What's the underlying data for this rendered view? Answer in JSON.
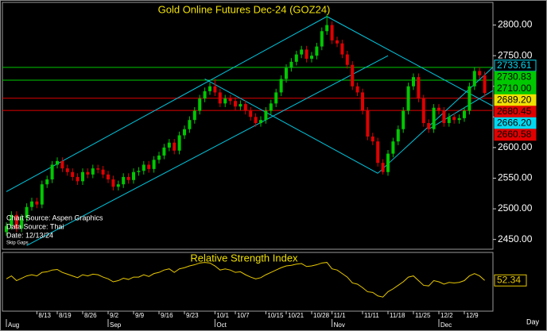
{
  "chart_data": {
    "type": "candlestick",
    "title": "Gold  Online  Futures  Dec-24  (GOZ24)",
    "categories": [
      null,
      null,
      null,
      null,
      null,
      null,
      "8/13",
      null,
      null,
      null,
      "8/19",
      null,
      null,
      null,
      null,
      "8/26",
      null,
      null,
      null,
      null,
      "9/2",
      null,
      null,
      null,
      null,
      "9/9",
      null,
      null,
      null,
      null,
      "9/16",
      null,
      null,
      null,
      null,
      "9/23",
      null,
      null,
      null,
      null,
      null,
      "10/1",
      null,
      null,
      null,
      "10/7",
      null,
      null,
      null,
      null,
      null,
      "10/15",
      null,
      null,
      null,
      "10/21",
      null,
      null,
      null,
      null,
      "10/28",
      null,
      null,
      null,
      "11/1",
      null,
      null,
      null,
      null,
      null,
      "11/11",
      null,
      null,
      null,
      null,
      "11/18",
      null,
      null,
      null,
      null,
      "11/25",
      null,
      null,
      null,
      null,
      "12/2",
      null,
      null,
      null,
      null,
      "12/9",
      null,
      null,
      null,
      null
    ],
    "months": [
      "Aug",
      null,
      null,
      null,
      null,
      null,
      null,
      null,
      null,
      null,
      null,
      null,
      null,
      null,
      null,
      null,
      null,
      null,
      null,
      null,
      "Sep",
      null,
      null,
      null,
      null,
      null,
      null,
      null,
      null,
      null,
      null,
      null,
      null,
      null,
      null,
      null,
      null,
      null,
      null,
      null,
      null,
      "Oct",
      null,
      null,
      null,
      null,
      null,
      null,
      null,
      null,
      null,
      null,
      null,
      null,
      null,
      null,
      null,
      null,
      null,
      null,
      null,
      null,
      null,
      null,
      "Nov",
      null,
      null,
      null,
      null,
      null,
      null,
      null,
      null,
      null,
      null,
      null,
      null,
      null,
      null,
      null,
      null,
      null,
      null,
      null,
      null,
      "Dec",
      null,
      null,
      null,
      null,
      null,
      null,
      null,
      null,
      null
    ],
    "x_axis_label": "Day",
    "open": [
      2462,
      2472,
      2490,
      2468,
      2485,
      2503,
      2512,
      2507,
      2540,
      2548,
      2572,
      2578,
      2566,
      2560,
      2552,
      2545,
      2560,
      2556,
      2566,
      2564,
      2556,
      2548,
      2536,
      2540,
      2552,
      2547,
      2560,
      2562,
      2572,
      2565,
      2580,
      2587,
      2600,
      2608,
      2595,
      2620,
      2630,
      2645,
      2660,
      2680,
      2692,
      2700,
      2690,
      2672,
      2680,
      2676,
      2667,
      2671,
      2660,
      2650,
      2640,
      2645,
      2660,
      2672,
      2690,
      2712,
      2730,
      2740,
      2752,
      2760,
      2745,
      2750,
      2765,
      2790,
      2800,
      2775,
      2770,
      2752,
      2735,
      2700,
      2690,
      2660,
      2618,
      2610,
      2575,
      2560,
      2590,
      2610,
      2630,
      2660,
      2700,
      2715,
      2680,
      2640,
      2630,
      2665,
      2660,
      2640,
      2650,
      2645,
      2648,
      2660,
      2700,
      2725,
      2718
    ],
    "high": [
      2478,
      2496,
      2496,
      2491,
      2509,
      2518,
      2518,
      2546,
      2554,
      2578,
      2584,
      2584,
      2572,
      2566,
      2558,
      2566,
      2566,
      2572,
      2572,
      2570,
      2562,
      2554,
      2546,
      2558,
      2558,
      2566,
      2568,
      2578,
      2578,
      2586,
      2593,
      2606,
      2614,
      2614,
      2626,
      2636,
      2651,
      2666,
      2686,
      2698,
      2706,
      2712,
      2696,
      2686,
      2686,
      2682,
      2677,
      2677,
      2666,
      2656,
      2651,
      2666,
      2678,
      2696,
      2718,
      2736,
      2746,
      2758,
      2766,
      2766,
      2756,
      2771,
      2796,
      2817,
      2806,
      2781,
      2776,
      2758,
      2741,
      2706,
      2696,
      2666,
      2624,
      2616,
      2581,
      2596,
      2616,
      2636,
      2666,
      2706,
      2721,
      2721,
      2686,
      2646,
      2671,
      2671,
      2666,
      2656,
      2656,
      2654,
      2666,
      2706,
      2731,
      2731,
      2724
    ],
    "low": [
      2456,
      2466,
      2462,
      2462,
      2479,
      2497,
      2501,
      2501,
      2534,
      2542,
      2566,
      2560,
      2554,
      2546,
      2539,
      2539,
      2550,
      2550,
      2558,
      2550,
      2542,
      2530,
      2530,
      2534,
      2541,
      2541,
      2554,
      2556,
      2559,
      2559,
      2574,
      2581,
      2594,
      2589,
      2589,
      2614,
      2624,
      2639,
      2654,
      2674,
      2686,
      2684,
      2666,
      2666,
      2670,
      2661,
      2661,
      2654,
      2644,
      2634,
      2634,
      2639,
      2654,
      2666,
      2684,
      2706,
      2724,
      2734,
      2746,
      2739,
      2739,
      2744,
      2759,
      2784,
      2769,
      2764,
      2746,
      2729,
      2694,
      2684,
      2654,
      2612,
      2604,
      2569,
      2556,
      2554,
      2584,
      2604,
      2624,
      2654,
      2694,
      2674,
      2634,
      2624,
      2624,
      2654,
      2634,
      2634,
      2639,
      2639,
      2642,
      2654,
      2694,
      2712,
      2683
    ],
    "close": [
      2472,
      2490,
      2468,
      2485,
      2503,
      2512,
      2507,
      2540,
      2548,
      2572,
      2578,
      2566,
      2560,
      2552,
      2545,
      2560,
      2556,
      2566,
      2564,
      2556,
      2548,
      2536,
      2540,
      2552,
      2547,
      2560,
      2562,
      2572,
      2565,
      2580,
      2587,
      2600,
      2608,
      2595,
      2620,
      2630,
      2645,
      2660,
      2680,
      2692,
      2700,
      2690,
      2672,
      2680,
      2676,
      2667,
      2671,
      2660,
      2650,
      2640,
      2645,
      2660,
      2672,
      2690,
      2712,
      2730,
      2740,
      2752,
      2760,
      2745,
      2750,
      2765,
      2790,
      2800,
      2775,
      2770,
      2752,
      2735,
      2700,
      2690,
      2660,
      2618,
      2610,
      2575,
      2560,
      2590,
      2610,
      2630,
      2660,
      2700,
      2715,
      2680,
      2640,
      2630,
      2665,
      2660,
      2640,
      2650,
      2645,
      2648,
      2660,
      2700,
      2725,
      2718,
      2689
    ],
    "up_color": "#00c800",
    "down_color": "#e00000",
    "ylim": [
      2434,
      2837
    ],
    "yticks": [
      {
        "value": 2450,
        "label": "2450.00"
      },
      {
        "value": 2500,
        "label": "2500.00"
      },
      {
        "value": 2550,
        "label": "2550.00"
      },
      {
        "value": 2600,
        "label": "2600.00"
      },
      {
        "value": 2650,
        "label": "2650.00"
      },
      {
        "value": 2700,
        "label": "2700.00"
      },
      {
        "value": 2750,
        "label": "2750.00"
      },
      {
        "value": 2800,
        "label": "2800.00"
      }
    ],
    "levels": [
      {
        "value": 2733.61,
        "color": "#00d8f0",
        "line": false,
        "filled": false
      },
      {
        "value": 2730.83,
        "color": "#00c800",
        "line": true,
        "filled": true
      },
      {
        "value": 2710,
        "label": "2710.00",
        "color": "#00c800",
        "line": true,
        "filled": true
      },
      {
        "value": 2689.2,
        "label": "2689.20",
        "color": "#f0e000",
        "line": false,
        "filled": true
      },
      {
        "value": 2680.45,
        "color": "#e00000",
        "line": true,
        "filled": true
      },
      {
        "value": 2666.2,
        "label": "2666.20",
        "color": "#00d8f0",
        "line": false,
        "filled": true
      },
      {
        "value": 2660.58,
        "color": "#e00000",
        "line": true,
        "filled": true
      }
    ],
    "trendline_color": "#00c8e0",
    "trendlines": [
      {
        "from": [
          0,
          2528
        ],
        "to": [
          63,
          2814
        ]
      },
      {
        "from": [
          4,
          2440
        ],
        "to": [
          75,
          2750
        ]
      },
      {
        "from": [
          63,
          2814
        ],
        "to": [
          96,
          2666
        ]
      },
      {
        "from": [
          39,
          2712
        ],
        "to": [
          73,
          2558
        ]
      },
      {
        "from": [
          73,
          2558
        ],
        "to": [
          96,
          2734
        ]
      },
      {
        "from": [
          83,
          2630
        ],
        "to": [
          96,
          2695
        ]
      }
    ],
    "sources": [
      "Chart Source: Aspen Graphics",
      "Data Source: Thai",
      "Date: 12/13/24"
    ],
    "gaps_note": "Skip Gaps",
    "rsi": {
      "title": "Relative Strength Index",
      "color": "#e8c800",
      "ylim": [
        0,
        100
      ],
      "values": [
        55,
        60,
        52,
        56,
        60,
        62,
        60,
        66,
        67,
        70,
        71,
        66,
        63,
        60,
        57,
        62,
        60,
        63,
        62,
        58,
        55,
        50,
        52,
        56,
        54,
        58,
        58,
        62,
        59,
        64,
        66,
        70,
        72,
        66,
        72,
        74,
        77,
        79,
        82,
        83,
        82,
        77,
        70,
        72,
        70,
        66,
        67,
        62,
        58,
        55,
        57,
        62,
        66,
        70,
        74,
        77,
        78,
        80,
        81,
        76,
        77,
        79,
        82,
        83,
        72,
        70,
        64,
        58,
        48,
        46,
        40,
        33,
        32,
        26,
        24,
        33,
        38,
        44,
        50,
        58,
        60,
        52,
        44,
        43,
        52,
        50,
        46,
        49,
        48,
        49,
        52,
        60,
        64,
        60,
        52.34
      ]
    }
  }
}
